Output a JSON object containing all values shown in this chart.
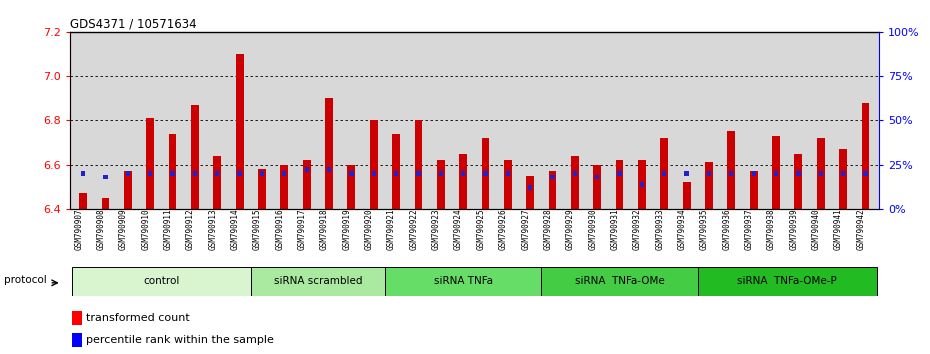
{
  "title": "GDS4371 / 10571634",
  "samples": [
    "GSM790907",
    "GSM790908",
    "GSM790909",
    "GSM790910",
    "GSM790911",
    "GSM790912",
    "GSM790913",
    "GSM790914",
    "GSM790915",
    "GSM790916",
    "GSM790917",
    "GSM790918",
    "GSM790919",
    "GSM790920",
    "GSM790921",
    "GSM790922",
    "GSM790923",
    "GSM790924",
    "GSM790925",
    "GSM790926",
    "GSM790927",
    "GSM790928",
    "GSM790929",
    "GSM790930",
    "GSM790931",
    "GSM790932",
    "GSM790933",
    "GSM790934",
    "GSM790935",
    "GSM790936",
    "GSM790937",
    "GSM790938",
    "GSM790939",
    "GSM790940",
    "GSM790941",
    "GSM790942"
  ],
  "red_values": [
    6.47,
    6.45,
    6.57,
    6.81,
    6.74,
    6.87,
    6.64,
    7.1,
    6.58,
    6.6,
    6.62,
    6.9,
    6.6,
    6.8,
    6.74,
    6.8,
    6.62,
    6.65,
    6.72,
    6.62,
    6.55,
    6.57,
    6.64,
    6.6,
    6.62,
    6.62,
    6.72,
    6.52,
    6.61,
    6.75,
    6.57,
    6.73,
    6.65,
    6.72,
    6.67,
    6.88
  ],
  "blue_values": [
    20,
    18,
    20,
    20,
    20,
    20,
    20,
    20,
    20,
    20,
    22,
    22,
    20,
    20,
    20,
    20,
    20,
    20,
    20,
    20,
    12,
    18,
    20,
    18,
    20,
    14,
    20,
    20,
    20,
    20,
    20,
    20,
    20,
    20,
    20,
    20
  ],
  "groups": [
    {
      "label": "control",
      "start": 0,
      "end": 8,
      "color": "#d8f5d0"
    },
    {
      "label": "siRNA scrambled",
      "start": 8,
      "end": 14,
      "color": "#aaeaa0"
    },
    {
      "label": "siRNA TNFa",
      "start": 14,
      "end": 21,
      "color": "#66dd66"
    },
    {
      "label": "siRNA  TNFa-OMe",
      "start": 21,
      "end": 28,
      "color": "#44cc44"
    },
    {
      "label": "siRNA  TNFa-OMe-P",
      "start": 28,
      "end": 36,
      "color": "#22bb22"
    }
  ],
  "y_min": 6.4,
  "y_max": 7.2,
  "y_ticks": [
    6.4,
    6.6,
    6.8,
    7.0,
    7.2
  ],
  "y_right_ticks": [
    0,
    25,
    50,
    75,
    100
  ],
  "bar_color": "#cc0000",
  "blue_color": "#2222cc",
  "bg_color": "#d8d8d8"
}
